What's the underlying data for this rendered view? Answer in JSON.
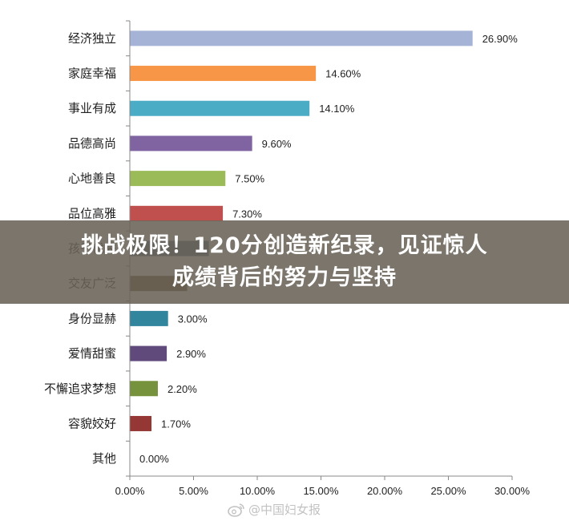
{
  "chart_data": {
    "type": "bar",
    "orientation": "horizontal",
    "categories": [
      "经济独立",
      "家庭幸福",
      "事业有成",
      "品德高尚",
      "心地善良",
      "品位高雅",
      "孩子优秀",
      "交友广泛",
      "身份显赫",
      "爱情甜蜜",
      "不懈追求梦想",
      "容貌姣好",
      "其他"
    ],
    "values": [
      26.9,
      14.6,
      14.1,
      9.6,
      7.5,
      7.3,
      6.2,
      4.5,
      3.0,
      2.9,
      2.2,
      1.7,
      0.0
    ],
    "value_labels": [
      "26.90%",
      "14.60%",
      "14.10%",
      "9.60%",
      "7.50%",
      "7.30%",
      "",
      "",
      "3.00%",
      "2.90%",
      "2.20%",
      "1.70%",
      "0.00%"
    ],
    "colors": [
      "#a5b4d6",
      "#f79646",
      "#4bacc6",
      "#8064a2",
      "#9bbb59",
      "#c0504d",
      "#4f6079",
      "#6e4c2a",
      "#31859c",
      "#604a7b",
      "#76923c",
      "#953735",
      "#4f6079"
    ],
    "xlim": [
      0,
      30
    ],
    "x_ticks": [
      "0.00%",
      "5.00%",
      "10.00%",
      "15.00%",
      "20.00%",
      "25.00%",
      "30.00%"
    ],
    "grid": false,
    "legend": "none"
  },
  "banner": {
    "line1": "挑战极限！120分创造新纪录，见证惊人",
    "line2": "成绩背后的努力与坚持"
  },
  "watermark": {
    "icon": "weibo-icon",
    "text": "@中国妇女报"
  }
}
